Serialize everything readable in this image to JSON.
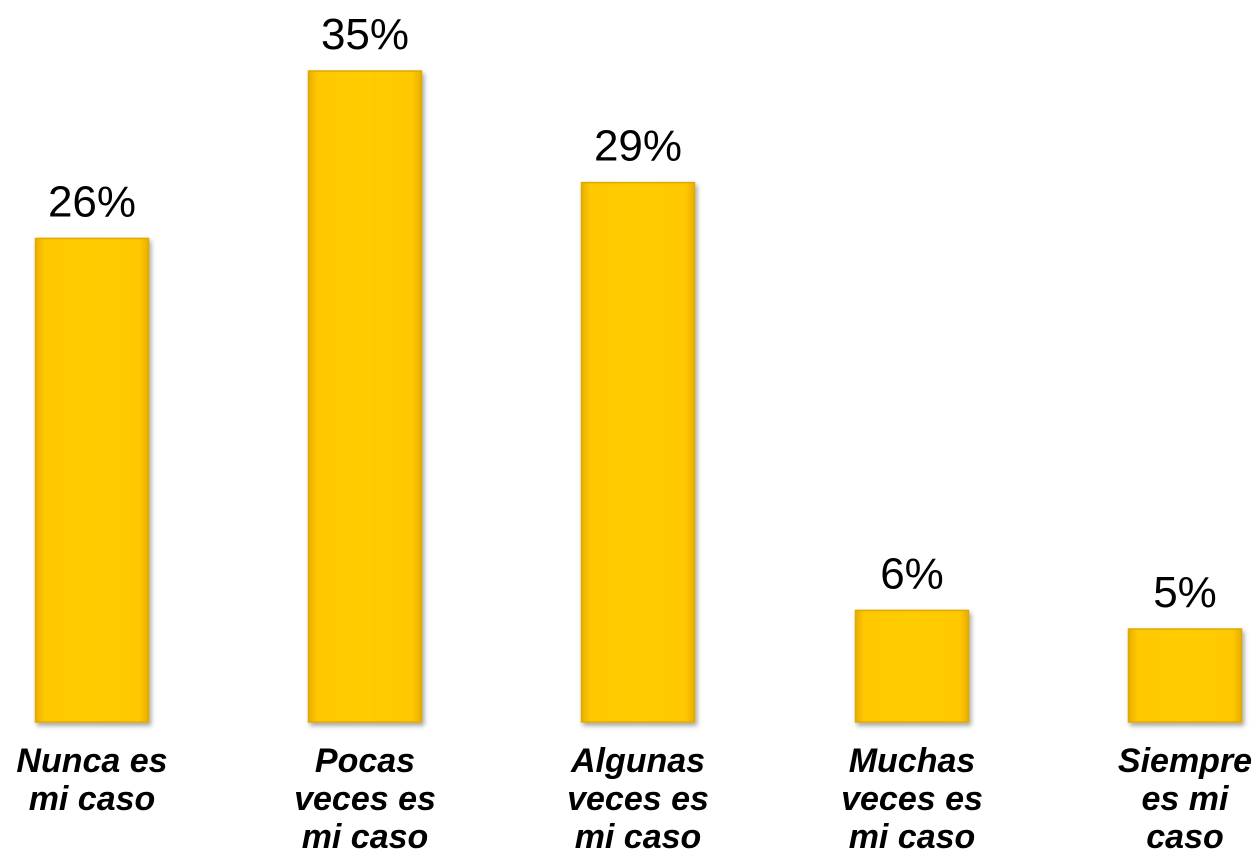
{
  "chart_data": {
    "type": "bar",
    "title": "",
    "xlabel": "",
    "ylabel": "",
    "ylim": [
      0,
      35
    ],
    "grid": false,
    "legend": "none",
    "value_suffix": "%",
    "bar_color": "#FFCC00",
    "bar_edge_color": "#E0A800",
    "categories": [
      [
        "Nunca es",
        "mi caso"
      ],
      [
        "Pocas",
        "veces es",
        "mi caso"
      ],
      [
        "Algunas",
        "veces es",
        "mi caso"
      ],
      [
        "Muchas",
        "veces es",
        "mi caso"
      ],
      [
        "Siempre",
        "es mi",
        "caso"
      ]
    ],
    "values": [
      26,
      35,
      29,
      6,
      5
    ],
    "data_labels": [
      "26%",
      "35%",
      "29%",
      "6%",
      "5%"
    ]
  }
}
